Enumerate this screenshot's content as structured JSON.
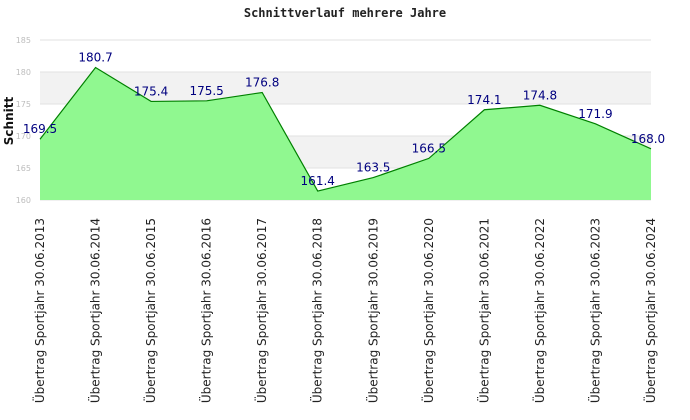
{
  "chart_data": {
    "type": "area",
    "title": "Schnittverlauf mehrere Jahre",
    "xlabel": "",
    "ylabel": "Schnitt",
    "ylim": [
      160,
      185
    ],
    "yticks": [
      160,
      165,
      170,
      175,
      180,
      185
    ],
    "grid": true,
    "categories": [
      "Übertrag Sportjahr 30.06.2013",
      "Übertrag Sportjahr 30.06.2014",
      "Übertrag Sportjahr 30.06.2015",
      "Übertrag Sportjahr 30.06.2016",
      "Übertrag Sportjahr 30.06.2017",
      "Übertrag Sportjahr 30.06.2018",
      "Übertrag Sportjahr 30.06.2019",
      "Übertrag Sportjahr 30.06.2020",
      "Übertrag Sportjahr 30.06.2021",
      "Übertrag Sportjahr 30.06.2022",
      "Übertrag Sportjahr 30.06.2023",
      "Übertrag Sportjahr 30.06.2024"
    ],
    "values": [
      169.5,
      180.7,
      175.4,
      175.5,
      176.8,
      161.4,
      163.5,
      166.5,
      174.1,
      174.8,
      171.9,
      168.0
    ],
    "value_labels": [
      "169.5",
      "180.7",
      "175.4",
      "175.5",
      "176.8",
      "161.4",
      "163.5",
      "166.5",
      "174.1",
      "174.8",
      "171.9",
      "168.0"
    ],
    "colors": {
      "fill": "#90f890",
      "line": "#008000",
      "labels": "#00007f",
      "band": "#f2f2f2",
      "grid": "#e2e2e2"
    }
  }
}
